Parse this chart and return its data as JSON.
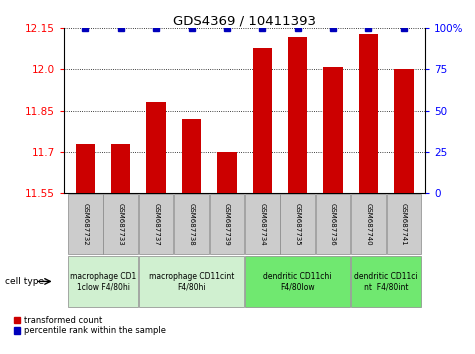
{
  "title": "GDS4369 / 10411393",
  "samples": [
    "GSM687732",
    "GSM687733",
    "GSM687737",
    "GSM687738",
    "GSM687739",
    "GSM687734",
    "GSM687735",
    "GSM687736",
    "GSM687740",
    "GSM687741"
  ],
  "red_values": [
    11.73,
    11.73,
    11.88,
    11.82,
    11.7,
    12.08,
    12.12,
    12.01,
    12.13,
    12.0
  ],
  "blue_values": [
    100,
    100,
    100,
    100,
    100,
    100,
    100,
    100,
    100,
    100
  ],
  "ylim_left": [
    11.55,
    12.15
  ],
  "ylim_right": [
    0,
    100
  ],
  "yticks_left": [
    11.55,
    11.7,
    11.85,
    12.0,
    12.15
  ],
  "yticks_right": [
    0,
    25,
    50,
    75,
    100
  ],
  "ytick_labels_right": [
    "0",
    "25",
    "50",
    "75",
    "100%"
  ],
  "bar_color": "#cc0000",
  "dot_color": "#0000bb",
  "group_configs": [
    {
      "label": "macrophage CD1\n1clow F4/80hi",
      "indices": [
        0,
        1
      ],
      "color": "#d0f0d0"
    },
    {
      "label": "macrophage CD11cint\nF4/80hi",
      "indices": [
        2,
        3,
        4
      ],
      "color": "#d0f0d0"
    },
    {
      "label": "dendritic CD11chi\nF4/80low",
      "indices": [
        5,
        6,
        7
      ],
      "color": "#70e870"
    },
    {
      "label": "dendritic CD11ci\nnt  F4/80int",
      "indices": [
        8,
        9
      ],
      "color": "#70e870"
    }
  ],
  "legend_red": "transformed count",
  "legend_blue": "percentile rank within the sample",
  "cell_type_label": "cell type"
}
